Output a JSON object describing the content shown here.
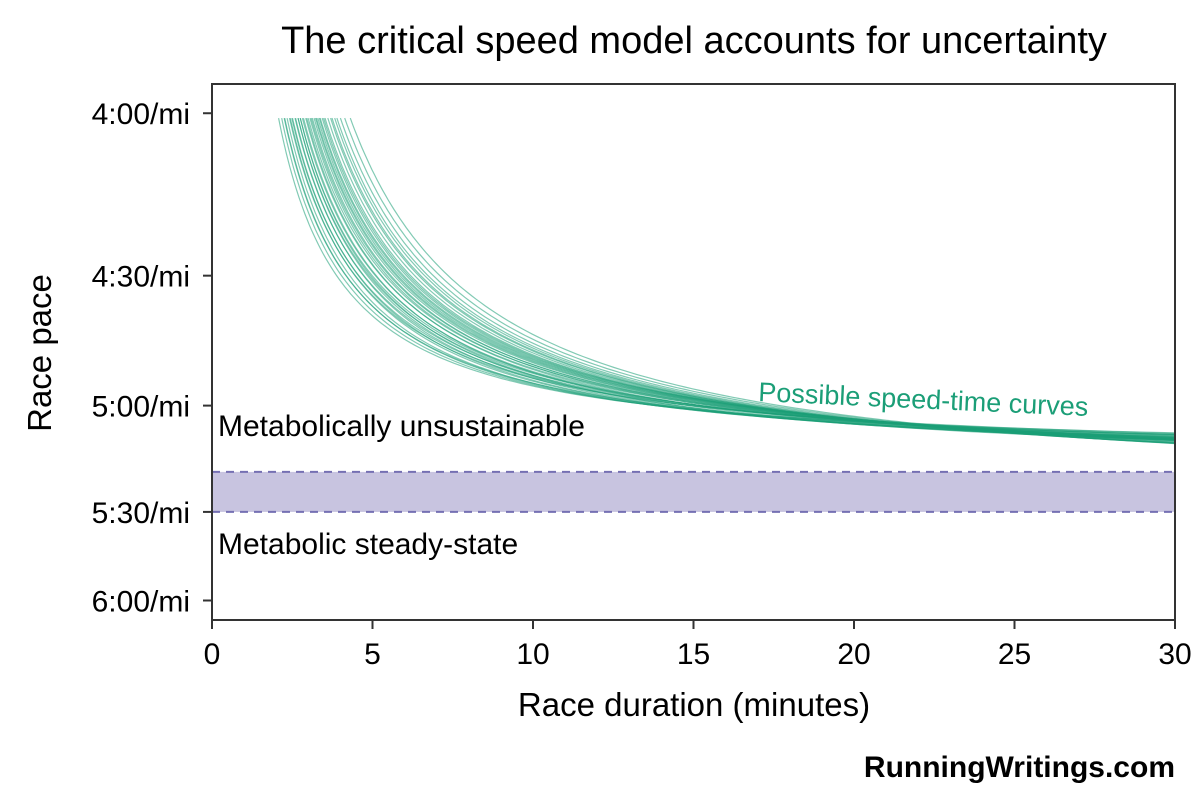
{
  "chart_data": {
    "type": "line",
    "title": "The critical speed model accounts for uncertainty",
    "xlabel": "Race duration (minutes)",
    "ylabel": "Race pace",
    "xlim": [
      0,
      30
    ],
    "x_ticks": [
      0,
      5,
      10,
      15,
      20,
      25,
      30
    ],
    "x_tick_labels": [
      "0",
      "5",
      "10",
      "15",
      "20",
      "25",
      "30"
    ],
    "ylim_speed_mph": [
      9.8,
      15.3
    ],
    "y_ticks_speed_mph": [
      15,
      13.3333,
      12,
      10.9091,
      10
    ],
    "y_tick_labels": [
      "4:00/mi",
      "4:30/mi",
      "5:00/mi",
      "5:30/mi",
      "6:00/mi"
    ],
    "grid": false,
    "legend": "none",
    "colors": {
      "curves": "#1b9e77",
      "band_fill": "#c8c4e0",
      "band_line": "#7570b3",
      "axis": "#333333"
    },
    "band": {
      "lower_pace": "5:30/mi",
      "upper_pace": "5:18/mi",
      "lower_speed_mph": 10.9091,
      "upper_speed_mph": 11.32,
      "label_above": "Metabolically unsustainable",
      "label_below": "Metabolic steady-state"
    },
    "curves_label": "Possible speed-time curves",
    "curve_model": "speed = CS + D' / t",
    "curve_start_speed_mph": 14.95,
    "series": [
      {
        "cs_mph": 11.48,
        "d_prime_mi_min": 7.2
      },
      {
        "cs_mph": 11.45,
        "d_prime_mi_min": 7.6
      },
      {
        "cs_mph": 11.42,
        "d_prime_mi_min": 8.0
      },
      {
        "cs_mph": 11.4,
        "d_prime_mi_min": 8.3
      },
      {
        "cs_mph": 11.38,
        "d_prime_mi_min": 8.7
      },
      {
        "cs_mph": 11.36,
        "d_prime_mi_min": 9.0
      },
      {
        "cs_mph": 11.34,
        "d_prime_mi_min": 9.4
      },
      {
        "cs_mph": 11.33,
        "d_prime_mi_min": 9.7
      },
      {
        "cs_mph": 11.31,
        "d_prime_mi_min": 10.0
      },
      {
        "cs_mph": 11.3,
        "d_prime_mi_min": 10.4
      },
      {
        "cs_mph": 11.29,
        "d_prime_mi_min": 10.8
      },
      {
        "cs_mph": 11.28,
        "d_prime_mi_min": 11.2
      },
      {
        "cs_mph": 11.27,
        "d_prime_mi_min": 11.5
      },
      {
        "cs_mph": 11.26,
        "d_prime_mi_min": 11.9
      },
      {
        "cs_mph": 11.25,
        "d_prime_mi_min": 12.2
      },
      {
        "cs_mph": 11.24,
        "d_prime_mi_min": 12.5
      },
      {
        "cs_mph": 11.43,
        "d_prime_mi_min": 8.5
      },
      {
        "cs_mph": 11.39,
        "d_prime_mi_min": 9.2
      },
      {
        "cs_mph": 11.35,
        "d_prime_mi_min": 9.9
      },
      {
        "cs_mph": 11.32,
        "d_prime_mi_min": 10.6
      },
      {
        "cs_mph": 11.29,
        "d_prime_mi_min": 11.3
      },
      {
        "cs_mph": 11.26,
        "d_prime_mi_min": 12.0
      },
      {
        "cs_mph": 11.22,
        "d_prime_mi_min": 12.8
      },
      {
        "cs_mph": 11.2,
        "d_prime_mi_min": 13.2
      },
      {
        "cs_mph": 11.18,
        "d_prime_mi_min": 13.6
      },
      {
        "cs_mph": 11.15,
        "d_prime_mi_min": 14.2
      },
      {
        "cs_mph": 11.12,
        "d_prime_mi_min": 14.9
      },
      {
        "cs_mph": 11.1,
        "d_prime_mi_min": 15.4
      },
      {
        "cs_mph": 11.08,
        "d_prime_mi_min": 16.0
      },
      {
        "cs_mph": 11.05,
        "d_prime_mi_min": 16.8
      },
      {
        "cs_mph": 11.37,
        "d_prime_mi_min": 9.6
      },
      {
        "cs_mph": 11.31,
        "d_prime_mi_min": 10.9
      },
      {
        "cs_mph": 11.27,
        "d_prime_mi_min": 11.7
      },
      {
        "cs_mph": 11.21,
        "d_prime_mi_min": 13.0
      },
      {
        "cs_mph": 11.16,
        "d_prime_mi_min": 14.0
      },
      {
        "cs_mph": 11.44,
        "d_prime_mi_min": 7.9
      },
      {
        "cs_mph": 11.41,
        "d_prime_mi_min": 8.8
      },
      {
        "cs_mph": 11.33,
        "d_prime_mi_min": 10.2
      },
      {
        "cs_mph": 11.24,
        "d_prime_mi_min": 12.4
      },
      {
        "cs_mph": 11.13,
        "d_prime_mi_min": 14.6
      }
    ]
  },
  "footer": {
    "credit": "RunningWritings.com"
  }
}
